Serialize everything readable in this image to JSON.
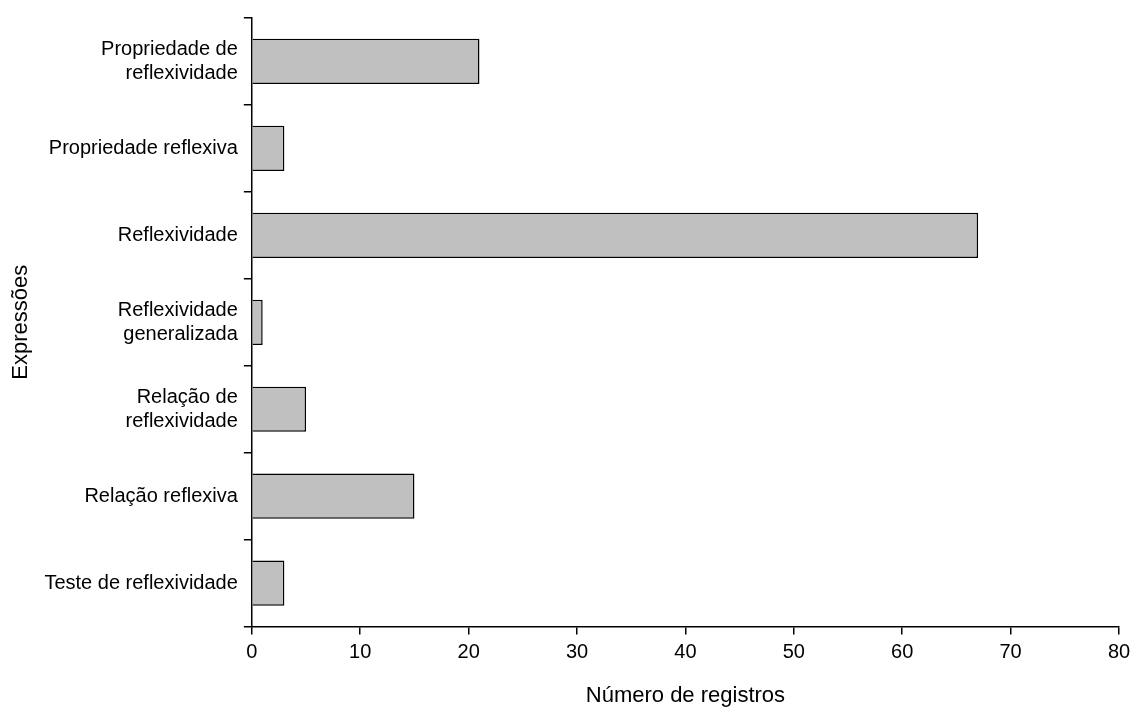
{
  "chart_data": {
    "type": "bar",
    "orientation": "horizontal",
    "categories": [
      "Propriedade de\nreflexividade",
      "Propriedade reflexiva",
      "Reflexividade",
      "Reflexividade\ngeneralizada",
      "Relação de\nreflexividade",
      "Relação reflexiva",
      "Teste de reflexividade"
    ],
    "values": [
      21,
      3,
      67,
      1,
      5,
      15,
      3
    ],
    "color": "#c0c0c0",
    "xlabel": "Número de registros",
    "ylabel": "Expressões",
    "xlim": [
      0,
      80
    ],
    "xticks": [
      0,
      10,
      20,
      30,
      40,
      50,
      60,
      70,
      80
    ],
    "grid": false,
    "legend": false
  }
}
